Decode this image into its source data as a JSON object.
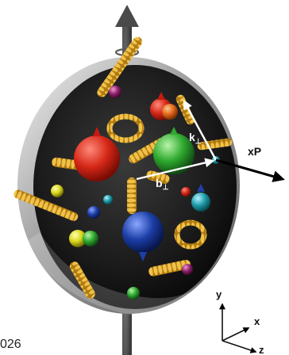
{
  "labels": {
    "k_perp": "k",
    "b_perp": "b",
    "perp_symbol": "⊥",
    "xP": "xP"
  },
  "axes": {
    "y": "y",
    "x": "x",
    "z": "z"
  },
  "corner_text": "026",
  "colors": {
    "sphere_dark": "#1b1b1b",
    "rim": "#9a9a9a",
    "gluon": "#d4a017",
    "red": "#d62818",
    "green": "#2ea82e",
    "blue": "#1c3fa8",
    "yellow": "#d8d61a",
    "cyan": "#1f9aa8",
    "magenta": "#8e1f6b",
    "spin_axis": "#6a6a6a"
  },
  "icons": {
    "spin_rotation": "circular-arrow-icon",
    "momentum": "arrow-icon"
  }
}
